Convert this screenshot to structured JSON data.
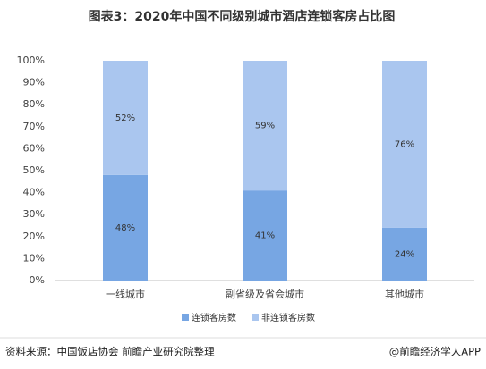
{
  "chart_data": {
    "type": "stacked_bar",
    "title": "图表3：2020年中国不同级别城市酒店连锁客房占比图",
    "categories": [
      "一线城市",
      "副省级及省会城市",
      "其他城市"
    ],
    "series": [
      {
        "name": "连锁客房数",
        "color": "#77a6e3",
        "values": [
          48,
          41,
          24
        ],
        "value_labels": [
          "48%",
          "41%",
          "24%"
        ]
      },
      {
        "name": "非连锁客房数",
        "color": "#aac6ef",
        "values": [
          52,
          59,
          76
        ],
        "value_labels": [
          "52%",
          "59%",
          "76%"
        ]
      }
    ],
    "ylim": [
      0,
      100
    ],
    "yticks": [
      {
        "value": 0,
        "label": "0%"
      },
      {
        "value": 10,
        "label": "10%"
      },
      {
        "value": 20,
        "label": "20%"
      },
      {
        "value": 30,
        "label": "30%"
      },
      {
        "value": 40,
        "label": "40%"
      },
      {
        "value": 50,
        "label": "50%"
      },
      {
        "value": 60,
        "label": "60%"
      },
      {
        "value": 70,
        "label": "70%"
      },
      {
        "value": 80,
        "label": "80%"
      },
      {
        "value": 90,
        "label": "90%"
      },
      {
        "value": 100,
        "label": "100%"
      }
    ],
    "grid": false,
    "legend": "bottom"
  },
  "source": "资料来源：中国饭店协会 前瞻产业研究院整理",
  "credit": "@前瞻经济学人APP"
}
